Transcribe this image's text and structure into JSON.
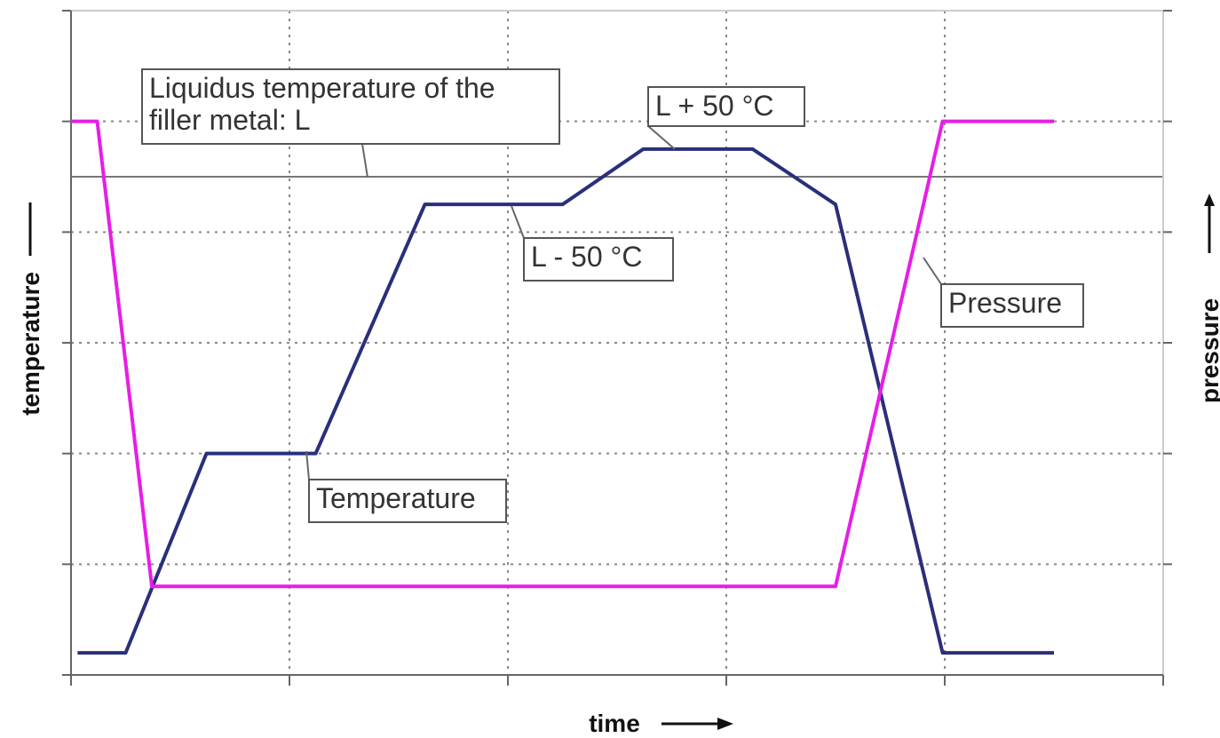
{
  "chart_data": {
    "type": "line",
    "xlabel": "time",
    "ylabel": "temperature",
    "y2label": "pressure",
    "xlim": [
      0,
      5
    ],
    "ylim": [
      0,
      6
    ],
    "grid": true,
    "grid_style": "dotted",
    "series": [
      {
        "name": "Temperature",
        "color": "#2a2f7a",
        "points": [
          [
            0.03,
            0.2
          ],
          [
            0.25,
            0.2
          ],
          [
            0.62,
            2.0
          ],
          [
            1.12,
            2.0
          ],
          [
            1.62,
            4.25
          ],
          [
            2.12,
            4.25
          ],
          [
            2.25,
            4.25
          ],
          [
            2.62,
            4.75
          ],
          [
            3.12,
            4.75
          ],
          [
            3.5,
            4.25
          ],
          [
            3.99,
            0.2
          ],
          [
            4.5,
            0.2
          ]
        ]
      },
      {
        "name": "Pressure",
        "color": "#e61ee6",
        "points": [
          [
            0.0,
            5.0
          ],
          [
            0.12,
            5.0
          ],
          [
            0.37,
            0.8
          ],
          [
            3.5,
            0.8
          ],
          [
            3.99,
            5.0
          ],
          [
            4.5,
            5.0
          ]
        ]
      }
    ],
    "reference_line": {
      "y": 4.5
    },
    "annotations": [
      {
        "id": "liquidus",
        "lines": [
          "Liquidus temperature of the",
          "filler metal: L"
        ],
        "target": [
          1.33,
          4.5
        ]
      },
      {
        "id": "l_plus",
        "lines": [
          "L + 50 °C"
        ],
        "target": [
          2.62,
          4.75
        ]
      },
      {
        "id": "l_minus",
        "lines": [
          "L - 50 °C"
        ],
        "target": [
          2.04,
          4.25
        ]
      },
      {
        "id": "temp",
        "lines": [
          "Temperature"
        ],
        "target": [
          1.08,
          2.0
        ]
      },
      {
        "id": "press",
        "lines": [
          "Pressure"
        ],
        "target": [
          3.87,
          3.9
        ]
      }
    ]
  }
}
